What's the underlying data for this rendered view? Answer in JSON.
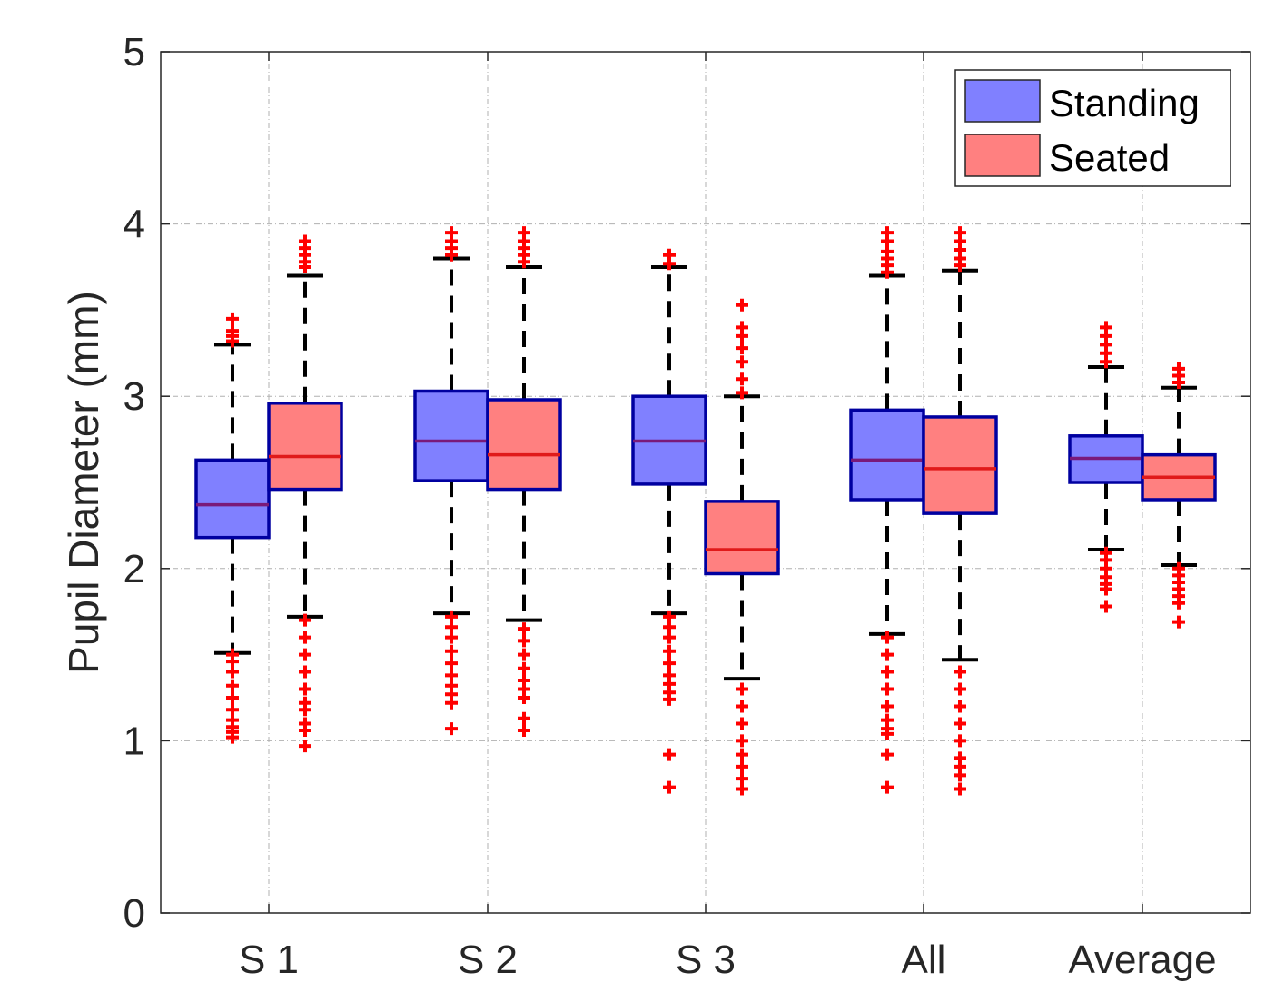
{
  "chart_data": {
    "type": "box",
    "title": "",
    "xlabel": "",
    "ylabel": "Pupil Diameter (mm)",
    "ylim": [
      0,
      5
    ],
    "yticks": [
      0,
      1,
      2,
      3,
      4,
      5
    ],
    "grid": true,
    "categories": [
      "S 1",
      "S 2",
      "S 3",
      "All",
      "Average"
    ],
    "legend": {
      "position": "top-right",
      "entries": [
        "Standing",
        "Seated"
      ]
    },
    "colors": {
      "standing_fill": "#8080ff",
      "seated_fill": "#ff8080",
      "box_edge": "#0000a0",
      "outlier": "#ff0000",
      "median_standing": "#7a1a7a",
      "median_seated": "#e01a1a",
      "whisker": "#000000",
      "grid": "#b0b0b0"
    },
    "series": [
      {
        "name": "Standing",
        "boxes": [
          {
            "category": "S 1",
            "q1": 2.18,
            "median": 2.37,
            "q3": 2.63,
            "whisker_low": 1.51,
            "whisker_high": 3.3,
            "outliers": [
              1.02,
              1.05,
              1.08,
              1.12,
              1.18,
              1.25,
              1.32,
              1.4,
              1.46,
              1.5,
              3.32,
              3.35,
              3.38,
              3.45
            ]
          },
          {
            "category": "S 2",
            "q1": 2.51,
            "median": 2.74,
            "q3": 3.03,
            "whisker_low": 1.74,
            "whisker_high": 3.8,
            "outliers": [
              1.07,
              1.22,
              1.27,
              1.32,
              1.38,
              1.45,
              1.52,
              1.6,
              1.66,
              1.72,
              3.82,
              3.86,
              3.9,
              3.95
            ]
          },
          {
            "category": "S 3",
            "q1": 2.49,
            "median": 2.74,
            "q3": 3.0,
            "whisker_low": 1.74,
            "whisker_high": 3.75,
            "outliers": [
              0.73,
              0.92,
              1.24,
              1.28,
              1.33,
              1.38,
              1.45,
              1.52,
              1.6,
              1.66,
              1.72,
              3.77,
              3.82
            ]
          },
          {
            "category": "All",
            "q1": 2.4,
            "median": 2.63,
            "q3": 2.92,
            "whisker_low": 1.62,
            "whisker_high": 3.7,
            "outliers": [
              0.73,
              0.92,
              1.04,
              1.07,
              1.12,
              1.2,
              1.3,
              1.4,
              1.5,
              1.6,
              3.72,
              3.76,
              3.8,
              3.84,
              3.9,
              3.95
            ]
          },
          {
            "category": "Average",
            "q1": 2.5,
            "median": 2.64,
            "q3": 2.77,
            "whisker_low": 2.11,
            "whisker_high": 3.17,
            "outliers": [
              1.78,
              1.88,
              1.91,
              1.95,
              2.0,
              2.05,
              2.09,
              3.2,
              3.25,
              3.3,
              3.35,
              3.4
            ]
          }
        ]
      },
      {
        "name": "Seated",
        "boxes": [
          {
            "category": "S 1",
            "q1": 2.46,
            "median": 2.65,
            "q3": 2.96,
            "whisker_low": 1.72,
            "whisker_high": 3.7,
            "outliers": [
              0.97,
              1.06,
              1.1,
              1.18,
              1.22,
              1.3,
              1.4,
              1.5,
              1.6,
              1.7,
              3.75,
              3.78,
              3.82,
              3.86,
              3.9
            ]
          },
          {
            "category": "S 2",
            "q1": 2.46,
            "median": 2.66,
            "q3": 2.98,
            "whisker_low": 1.7,
            "whisker_high": 3.75,
            "outliers": [
              1.06,
              1.13,
              1.25,
              1.3,
              1.35,
              1.42,
              1.5,
              1.58,
              1.65,
              3.78,
              3.82,
              3.86,
              3.9,
              3.95
            ]
          },
          {
            "category": "S 3",
            "q1": 1.97,
            "median": 2.11,
            "q3": 2.39,
            "whisker_low": 1.36,
            "whisker_high": 3.0,
            "outliers": [
              0.72,
              0.78,
              0.85,
              0.92,
              1.0,
              1.1,
              1.2,
              1.3,
              3.02,
              3.1,
              3.2,
              3.28,
              3.35,
              3.4,
              3.53
            ]
          },
          {
            "category": "All",
            "q1": 2.32,
            "median": 2.58,
            "q3": 2.88,
            "whisker_low": 1.47,
            "whisker_high": 3.73,
            "outliers": [
              0.72,
              0.8,
              0.85,
              0.9,
              1.0,
              1.1,
              1.2,
              1.3,
              1.4,
              3.76,
              3.8,
              3.85,
              3.9,
              3.95
            ]
          },
          {
            "category": "Average",
            "q1": 2.4,
            "median": 2.53,
            "q3": 2.66,
            "whisker_low": 2.02,
            "whisker_high": 3.05,
            "outliers": [
              1.69,
              1.8,
              1.84,
              1.88,
              1.92,
              1.96,
              2.0,
              3.08,
              3.12,
              3.16
            ]
          }
        ]
      }
    ]
  }
}
